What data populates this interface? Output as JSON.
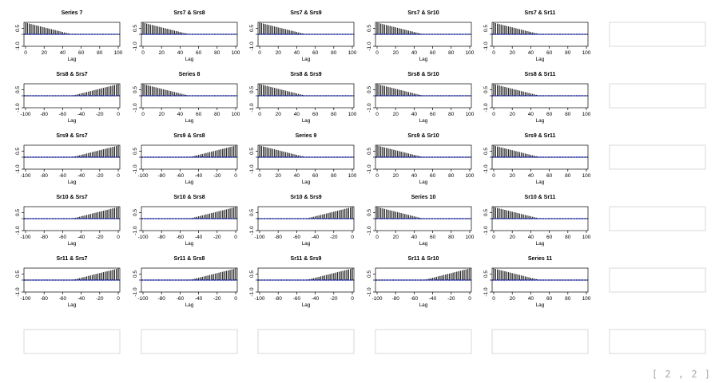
{
  "page_index": "[ 2 , 2 ]",
  "colors": {
    "bars": "#2a2a2a",
    "zero_line": "#000000",
    "ci_line": "#1f2ec9",
    "empty_frame": "#d9d9d9"
  },
  "chart_data": {
    "type": "bar",
    "description_kind": "ccf-matrix",
    "shared": {
      "xlabel": "Lag",
      "ylabel": "",
      "ylim": [
        -1.0,
        1.0
      ],
      "yticks": [
        "-1.0",
        "0.5"
      ],
      "ci": 0.02,
      "grid": false,
      "legend": "none"
    },
    "panels": [
      {
        "title": "Series 7",
        "xlim": [
          0,
          100
        ],
        "xticks": [
          "0",
          "20",
          "40",
          "60",
          "80",
          "100"
        ],
        "profile": "decay"
      },
      {
        "title": "Srs7 & Srs8",
        "xlim": [
          0,
          100
        ],
        "xticks": [
          "0",
          "20",
          "40",
          "60",
          "80",
          "100"
        ],
        "profile": "decay"
      },
      {
        "title": "Srs7 & Srs9",
        "xlim": [
          0,
          100
        ],
        "xticks": [
          "0",
          "20",
          "40",
          "60",
          "80",
          "100"
        ],
        "profile": "decay"
      },
      {
        "title": "Srs7 & Sr10",
        "xlim": [
          0,
          100
        ],
        "xticks": [
          "0",
          "20",
          "40",
          "60",
          "80",
          "100"
        ],
        "profile": "decay"
      },
      {
        "title": "Srs7 & Sr11",
        "xlim": [
          0,
          100
        ],
        "xticks": [
          "0",
          "20",
          "40",
          "60",
          "80",
          "100"
        ],
        "profile": "decay"
      },
      {
        "title": "Srs8 & Srs7",
        "xlim": [
          -100,
          0
        ],
        "xticks": [
          "-100",
          "-80",
          "-60",
          "-40",
          "-20",
          "0"
        ],
        "profile": "rise"
      },
      {
        "title": "Series 8",
        "xlim": [
          0,
          100
        ],
        "xticks": [
          "0",
          "20",
          "40",
          "60",
          "80",
          "100"
        ],
        "profile": "decay"
      },
      {
        "title": "Srs8 & Srs9",
        "xlim": [
          0,
          100
        ],
        "xticks": [
          "0",
          "20",
          "40",
          "60",
          "80",
          "100"
        ],
        "profile": "decay"
      },
      {
        "title": "Srs8 & Sr10",
        "xlim": [
          0,
          100
        ],
        "xticks": [
          "0",
          "20",
          "40",
          "60",
          "80",
          "100"
        ],
        "profile": "decay"
      },
      {
        "title": "Srs8 & Sr11",
        "xlim": [
          0,
          100
        ],
        "xticks": [
          "0",
          "20",
          "40",
          "60",
          "80",
          "100"
        ],
        "profile": "decay"
      },
      {
        "title": "Srs9 & Srs7",
        "xlim": [
          -100,
          0
        ],
        "xticks": [
          "-100",
          "-80",
          "-60",
          "-40",
          "-20",
          "0"
        ],
        "profile": "rise"
      },
      {
        "title": "Srs9 & Srs8",
        "xlim": [
          -100,
          0
        ],
        "xticks": [
          "-100",
          "-80",
          "-60",
          "-40",
          "-20",
          "0"
        ],
        "profile": "rise"
      },
      {
        "title": "Series 9",
        "xlim": [
          0,
          100
        ],
        "xticks": [
          "0",
          "20",
          "40",
          "60",
          "80",
          "100"
        ],
        "profile": "decay"
      },
      {
        "title": "Srs9 & Sr10",
        "xlim": [
          0,
          100
        ],
        "xticks": [
          "0",
          "20",
          "40",
          "60",
          "80",
          "100"
        ],
        "profile": "decay"
      },
      {
        "title": "Srs9 & Sr11",
        "xlim": [
          0,
          100
        ],
        "xticks": [
          "0",
          "20",
          "40",
          "60",
          "80",
          "100"
        ],
        "profile": "decay"
      },
      {
        "title": "Sr10 & Srs7",
        "xlim": [
          -100,
          0
        ],
        "xticks": [
          "-100",
          "-80",
          "-60",
          "-40",
          "-20",
          "0"
        ],
        "profile": "rise"
      },
      {
        "title": "Sr10 & Srs8",
        "xlim": [
          -100,
          0
        ],
        "xticks": [
          "-100",
          "-80",
          "-60",
          "-40",
          "-20",
          "0"
        ],
        "profile": "rise"
      },
      {
        "title": "Sr10 & Srs9",
        "xlim": [
          -100,
          0
        ],
        "xticks": [
          "-100",
          "-80",
          "-60",
          "-40",
          "-20",
          "0"
        ],
        "profile": "rise"
      },
      {
        "title": "Series 10",
        "xlim": [
          0,
          100
        ],
        "xticks": [
          "0",
          "20",
          "40",
          "60",
          "80",
          "100"
        ],
        "profile": "decay"
      },
      {
        "title": "Sr10 & Sr11",
        "xlim": [
          0,
          100
        ],
        "xticks": [
          "0",
          "20",
          "40",
          "60",
          "80",
          "100"
        ],
        "profile": "decay"
      },
      {
        "title": "Sr11 & Srs7",
        "xlim": [
          -100,
          0
        ],
        "xticks": [
          "-100",
          "-80",
          "-60",
          "-40",
          "-20",
          "0"
        ],
        "profile": "rise"
      },
      {
        "title": "Sr11 & Srs8",
        "xlim": [
          -100,
          0
        ],
        "xticks": [
          "-100",
          "-80",
          "-60",
          "-40",
          "-20",
          "0"
        ],
        "profile": "rise"
      },
      {
        "title": "Sr11 & Srs9",
        "xlim": [
          -100,
          0
        ],
        "xticks": [
          "-100",
          "-80",
          "-60",
          "-40",
          "-20",
          "0"
        ],
        "profile": "rise"
      },
      {
        "title": "Sr11 & Sr10",
        "xlim": [
          -100,
          0
        ],
        "xticks": [
          "-100",
          "-80",
          "-60",
          "-40",
          "-20",
          "0"
        ],
        "profile": "rise"
      },
      {
        "title": "Series 11",
        "xlim": [
          0,
          100
        ],
        "xticks": [
          "0",
          "20",
          "40",
          "60",
          "80",
          "100"
        ],
        "profile": "decay"
      }
    ],
    "bar_profiles": {
      "decay": {
        "lag_start": 0,
        "lag_end": 100,
        "step": 2,
        "peak": 0.97,
        "support": 50,
        "note": "acf declines linearly from lag 0 to ~0 at lag 50"
      },
      "rise": {
        "lag_start": -100,
        "lag_end": 0,
        "step": 2,
        "peak": 0.97,
        "support": 50,
        "note": "ccf rises linearly from ~0 at lag -50 to peak at lag 0"
      }
    }
  }
}
